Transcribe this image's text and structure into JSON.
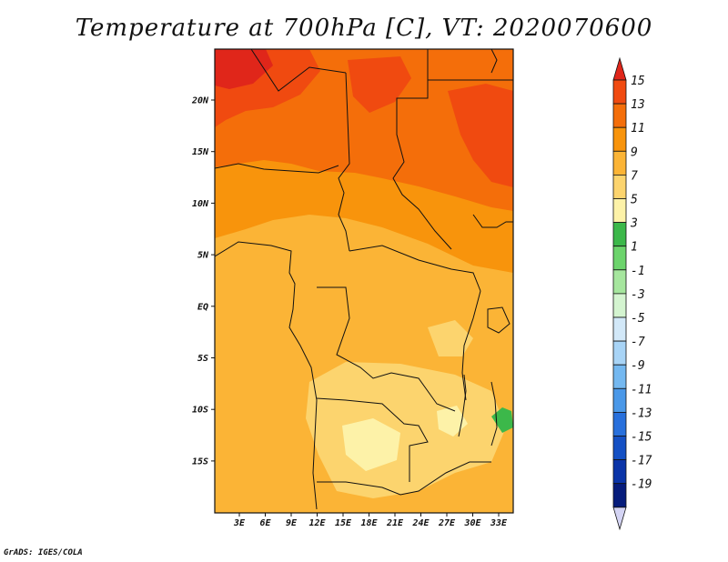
{
  "title": "Temperature at 700hPa [C], VT: 2020070600",
  "credit": "GrADS: IGES/COLA",
  "map": {
    "lon_labels": [
      "3E",
      "6E",
      "9E",
      "12E",
      "15E",
      "18E",
      "21E",
      "24E",
      "27E",
      "30E",
      "33E"
    ],
    "lat_labels": [
      "20N",
      "15N",
      "10N",
      "5N",
      "EQ",
      "5S",
      "10S",
      "15S"
    ]
  },
  "colorbar": {
    "labels": [
      "15",
      "13",
      "11",
      "9",
      "7",
      "5",
      "3",
      "1",
      "-1",
      "-3",
      "-5",
      "-7",
      "-9",
      "-11",
      "-13",
      "-15",
      "-17",
      "-19"
    ],
    "colors": [
      "#e0261a",
      "#f04a10",
      "#f46e0a",
      "#f8940c",
      "#fbb436",
      "#fcd46e",
      "#fdf2a8",
      "#3cb84a",
      "#6cd46c",
      "#a6e69e",
      "#d4f4d0",
      "#d2e8f8",
      "#a8d4f6",
      "#74b8f0",
      "#4a98e8",
      "#2870dc",
      "#1450c4",
      "#0a34a8",
      "#061c7c",
      "#d4d4f4"
    ]
  },
  "legend_colors": {
    "high": "#e0261a",
    "low": "#d4d4f4"
  }
}
